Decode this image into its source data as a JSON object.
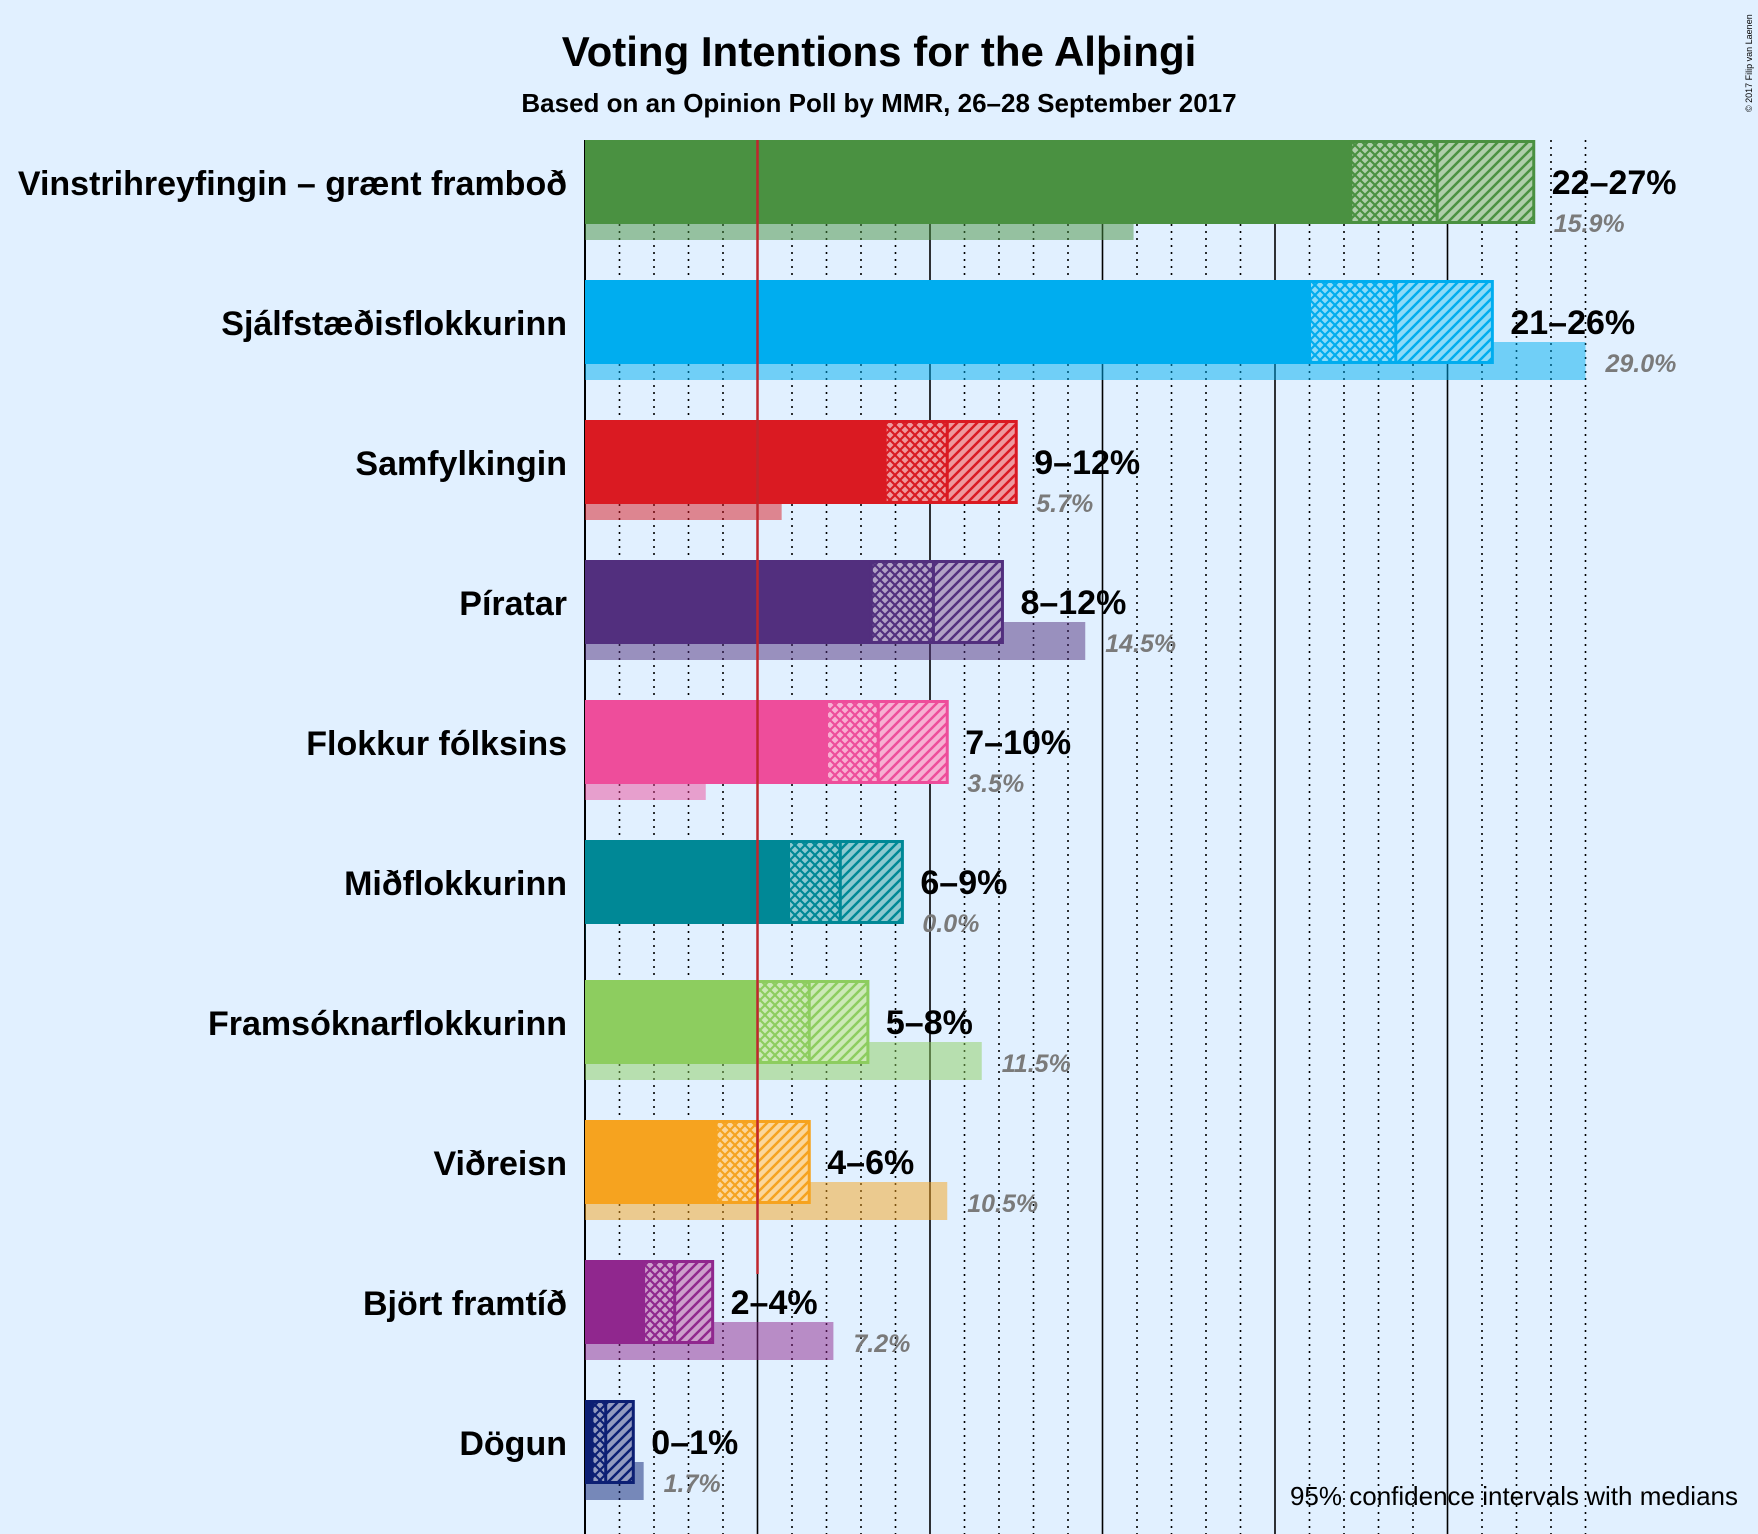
{
  "title": "Voting Intentions for the Alþingi",
  "subtitle": "Based on an Opinion Poll by MMR, 26–28 September 2017",
  "footer": "95% confidence intervals with medians",
  "credit": "© 2017 Filip van Laenen",
  "chart_data": {
    "type": "bar",
    "orientation": "horizontal",
    "x_unit": "%",
    "xlim": [
      0,
      30
    ],
    "grid": "dotted vertical every 1%, solid every 5%",
    "threshold": 5,
    "parties": [
      {
        "name": "Vinstrihreyfingin – grænt framboð",
        "color": "#4A9141",
        "low": 22.2,
        "median": 24.7,
        "high": 27.5,
        "range_label": "22–27%",
        "previous": 15.9,
        "previous_label": "15.9%"
      },
      {
        "name": "Sjálfstæðisflokkurinn",
        "color": "#00ADEF",
        "low": 21.0,
        "median": 23.5,
        "high": 26.3,
        "range_label": "21–26%",
        "previous": 29.0,
        "previous_label": "29.0%"
      },
      {
        "name": "Samfylkingin",
        "color": "#DA1A22",
        "low": 8.7,
        "median": 10.5,
        "high": 12.5,
        "range_label": "9–12%",
        "previous": 5.7,
        "previous_label": "5.7%"
      },
      {
        "name": "Píratar",
        "color": "#522F7E",
        "low": 8.3,
        "median": 10.1,
        "high": 12.1,
        "range_label": "8–12%",
        "previous": 14.5,
        "previous_label": "14.5%"
      },
      {
        "name": "Flokkur fólksins",
        "color": "#EE4D9B",
        "low": 7.0,
        "median": 8.5,
        "high": 10.5,
        "range_label": "7–10%",
        "previous": 3.5,
        "previous_label": "3.5%"
      },
      {
        "name": "Miðflokkurinn",
        "color": "#008896",
        "low": 5.9,
        "median": 7.4,
        "high": 9.2,
        "range_label": "6–9%",
        "previous": 0.0,
        "previous_label": "0.0%"
      },
      {
        "name": "Framsóknarflokkurinn",
        "color": "#8DCD5F",
        "low": 5.0,
        "median": 6.5,
        "high": 8.2,
        "range_label": "5–8%",
        "previous": 11.5,
        "previous_label": "11.5%"
      },
      {
        "name": "Viðreisn",
        "color": "#F6A31F",
        "low": 3.8,
        "median": 5.0,
        "high": 6.5,
        "range_label": "4–6%",
        "previous": 10.5,
        "previous_label": "10.5%"
      },
      {
        "name": "Björt framtíð",
        "color": "#90278E",
        "low": 1.7,
        "median": 2.6,
        "high": 3.7,
        "range_label": "2–4%",
        "previous": 7.2,
        "previous_label": "7.2%"
      },
      {
        "name": "Dögun",
        "color": "#0C1F74",
        "low": 0.2,
        "median": 0.6,
        "high": 1.4,
        "range_label": "0–1%",
        "previous": 1.7,
        "previous_label": "1.7%"
      }
    ]
  }
}
